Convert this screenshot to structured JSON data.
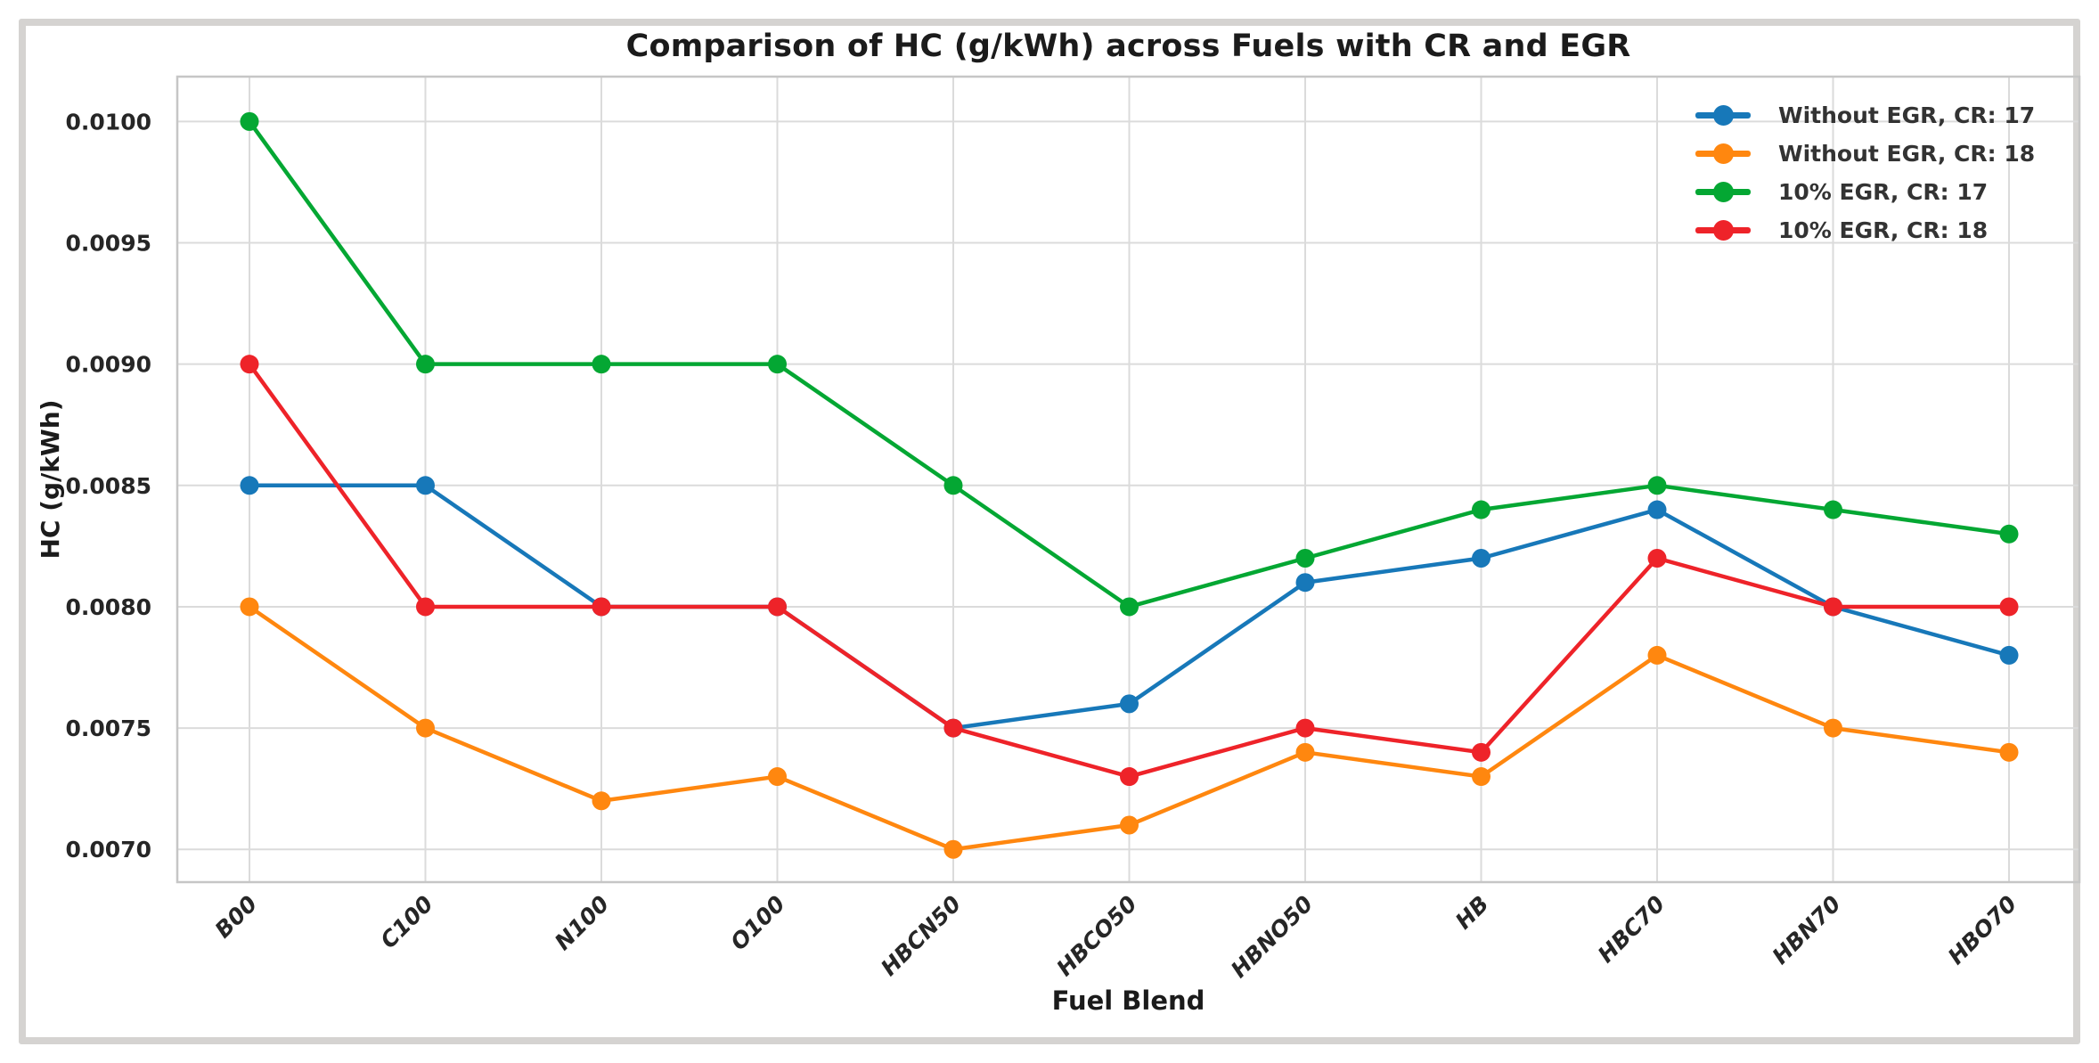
{
  "figure": {
    "frame_color": "#d5d3d1",
    "background": "#ffffff"
  },
  "chart_data": {
    "type": "line",
    "title": "Comparison of HC (g/kWh) across Fuels with CR and EGR",
    "xlabel": "Fuel Blend",
    "ylabel": "HC (g/kWh)",
    "categories": [
      "B00",
      "C100",
      "N100",
      "O100",
      "HBCN50",
      "HBCO50",
      "HBNO50",
      "HB",
      "HBC70",
      "HBN70",
      "HBO70"
    ],
    "series": [
      {
        "name": "Without EGR, CR: 17",
        "color": "#1778b9",
        "values": [
          0.0085,
          0.0085,
          0.008,
          0.008,
          0.0075,
          0.0076,
          0.0081,
          0.0082,
          0.0084,
          0.008,
          0.0078
        ]
      },
      {
        "name": "Without EGR, CR: 18",
        "color": "#ff870f",
        "values": [
          0.008,
          0.0075,
          0.0072,
          0.0073,
          0.007,
          0.0071,
          0.0074,
          0.0073,
          0.0078,
          0.0075,
          0.0074
        ]
      },
      {
        "name": "10% EGR, CR: 17",
        "color": "#04a733",
        "values": [
          0.01,
          0.009,
          0.009,
          0.009,
          0.0085,
          0.008,
          0.0082,
          0.0084,
          0.0085,
          0.0084,
          0.0083
        ]
      },
      {
        "name": "10% EGR, CR: 18",
        "color": "#ee2329",
        "values": [
          0.009,
          0.008,
          0.008,
          0.008,
          0.0075,
          0.0073,
          0.0075,
          0.0074,
          0.0082,
          0.008,
          0.008
        ]
      }
    ],
    "ytick_labels": [
      "0.0070",
      "0.0075",
      "0.0080",
      "0.0085",
      "0.0090",
      "0.0095",
      "0.0100"
    ],
    "ylim": [
      0.006865,
      0.010185
    ],
    "grid": true,
    "grid_color": "#dbdbdb",
    "spine_color": "#c6c6c6",
    "legend_position": "upper right"
  }
}
